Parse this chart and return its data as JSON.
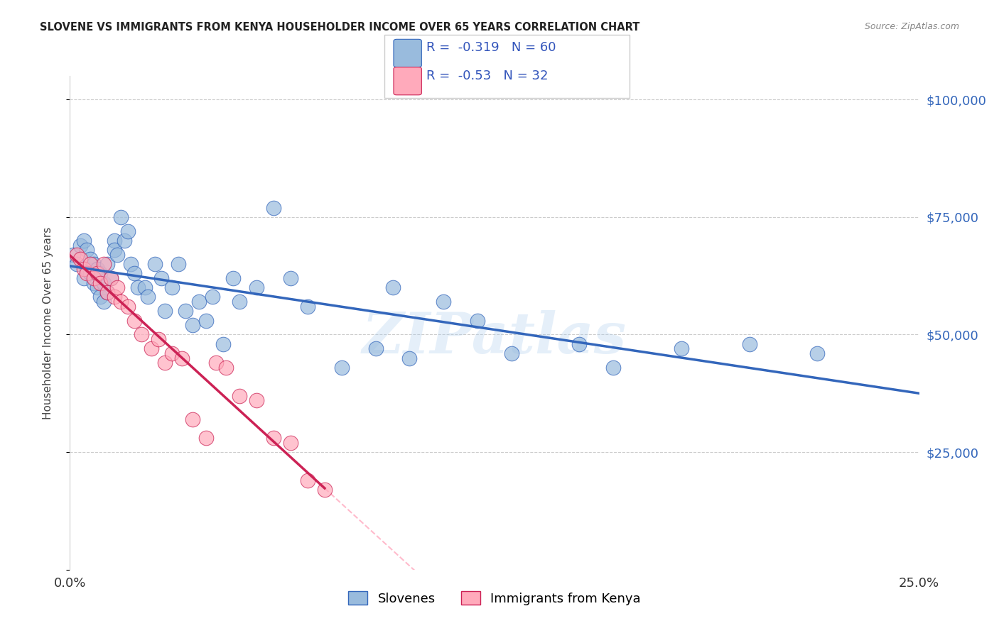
{
  "title": "SLOVENE VS IMMIGRANTS FROM KENYA HOUSEHOLDER INCOME OVER 65 YEARS CORRELATION CHART",
  "source": "Source: ZipAtlas.com",
  "ylabel": "Householder Income Over 65 years",
  "legend_label1": "Slovenes",
  "legend_label2": "Immigrants from Kenya",
  "r1": -0.319,
  "n1": 60,
  "r2": -0.53,
  "n2": 32,
  "yticks": [
    0,
    25000,
    50000,
    75000,
    100000
  ],
  "ytick_labels": [
    "",
    "$25,000",
    "$50,000",
    "$75,000",
    "$100,000"
  ],
  "xlim": [
    0.0,
    0.25
  ],
  "ylim": [
    0,
    105000
  ],
  "color_blue": "#99BBDD",
  "color_pink": "#FFAABB",
  "color_blue_line": "#3366BB",
  "color_pink_line": "#CC2255",
  "color_pink_dash": "#FFBBCC",
  "watermark": "ZIPatlas",
  "slovene_x": [
    0.001,
    0.002,
    0.003,
    0.004,
    0.004,
    0.005,
    0.005,
    0.006,
    0.006,
    0.007,
    0.007,
    0.008,
    0.008,
    0.009,
    0.009,
    0.01,
    0.01,
    0.011,
    0.011,
    0.012,
    0.013,
    0.013,
    0.014,
    0.015,
    0.016,
    0.017,
    0.018,
    0.019,
    0.02,
    0.022,
    0.023,
    0.025,
    0.027,
    0.028,
    0.03,
    0.032,
    0.034,
    0.036,
    0.038,
    0.04,
    0.042,
    0.045,
    0.048,
    0.05,
    0.055,
    0.06,
    0.065,
    0.07,
    0.08,
    0.09,
    0.095,
    0.1,
    0.11,
    0.12,
    0.13,
    0.15,
    0.16,
    0.18,
    0.2,
    0.22
  ],
  "slovene_y": [
    67000,
    65000,
    69000,
    62000,
    70000,
    64000,
    68000,
    63000,
    66000,
    61000,
    65000,
    60000,
    64000,
    58000,
    63000,
    61000,
    57000,
    65000,
    59000,
    62000,
    70000,
    68000,
    67000,
    75000,
    70000,
    72000,
    65000,
    63000,
    60000,
    60000,
    58000,
    65000,
    62000,
    55000,
    60000,
    65000,
    55000,
    52000,
    57000,
    53000,
    58000,
    48000,
    62000,
    57000,
    60000,
    77000,
    62000,
    56000,
    43000,
    47000,
    60000,
    45000,
    57000,
    53000,
    46000,
    48000,
    43000,
    47000,
    48000,
    46000
  ],
  "kenya_x": [
    0.002,
    0.003,
    0.004,
    0.005,
    0.006,
    0.007,
    0.008,
    0.009,
    0.01,
    0.011,
    0.012,
    0.013,
    0.014,
    0.015,
    0.017,
    0.019,
    0.021,
    0.024,
    0.026,
    0.028,
    0.03,
    0.033,
    0.036,
    0.04,
    0.043,
    0.046,
    0.05,
    0.055,
    0.06,
    0.065,
    0.07,
    0.075
  ],
  "kenya_y": [
    67000,
    66000,
    64000,
    63000,
    65000,
    62000,
    63000,
    61000,
    65000,
    59000,
    62000,
    58000,
    60000,
    57000,
    56000,
    53000,
    50000,
    47000,
    49000,
    44000,
    46000,
    45000,
    32000,
    28000,
    44000,
    43000,
    37000,
    36000,
    28000,
    27000,
    19000,
    17000
  ]
}
